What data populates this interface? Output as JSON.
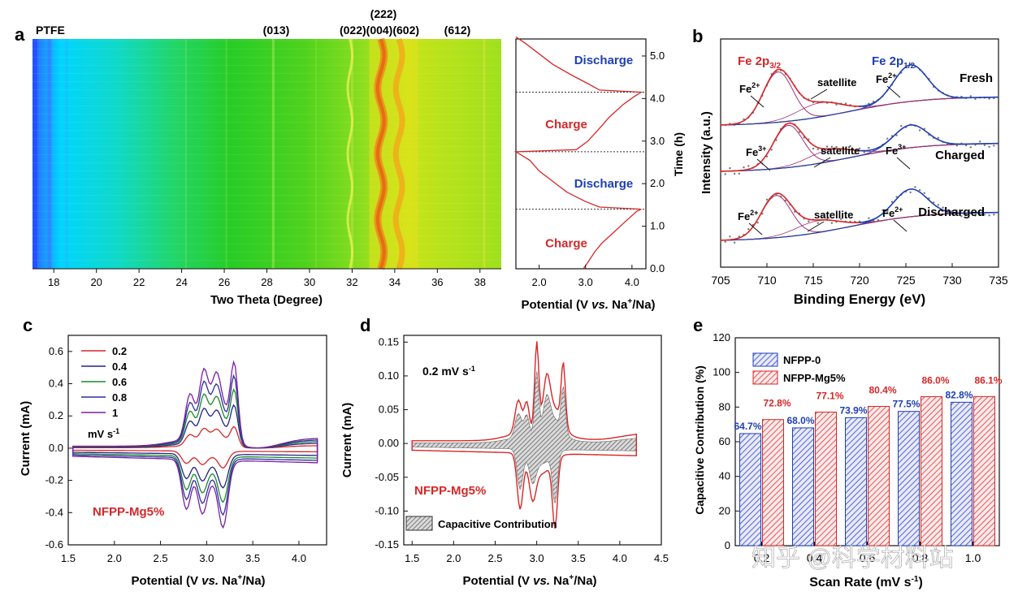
{
  "colors": {
    "red": "#d62728",
    "blue": "#1f3fb3",
    "green": "#1a8a2a",
    "purple": "#7a1fa2",
    "navy": "#23238e",
    "black": "#111111"
  },
  "watermark": "知乎 @科学材料站",
  "chart_data": [
    {
      "panel": "a",
      "type": "heatmap",
      "panel_label": "a",
      "title": "PTFE",
      "xlabel": "Two Theta (Degree)",
      "xlim": [
        17,
        39
      ],
      "xticks": [
        "18",
        "20",
        "22",
        "24",
        "26",
        "28",
        "30",
        "32",
        "34",
        "36",
        "38"
      ],
      "peak_labels": [
        {
          "label": "(013)",
          "x": 28.3
        },
        {
          "label": "(022)(004)(602)",
          "x": 33.5
        },
        {
          "label": "(222)",
          "x": 33.7
        },
        {
          "label": "(612)",
          "x": 36.4
        }
      ],
      "colorscale": [
        "#2a5cff",
        "#00d5ff",
        "#22d6a0",
        "#27cc27",
        "#7fdc1f",
        "#d6e51a",
        "#ffb000",
        "#f07020"
      ]
    },
    {
      "panel": "a-right",
      "type": "line",
      "xlabel_parts": [
        "Potential (V ",
        "vs.",
        " Na",
        "+",
        "/Na)"
      ],
      "ylabel": "Time (h)",
      "xlim": [
        1.5,
        4.3
      ],
      "ylim": [
        0,
        5.4
      ],
      "xticks": [
        "2.0",
        "3.0",
        "4.0"
      ],
      "yticks": [
        "0.0",
        "1.0",
        "2.0",
        "3.0",
        "4.0",
        "5.0"
      ],
      "segments": [
        "Charge",
        "Discharge",
        "Charge",
        "Discharge"
      ],
      "boundaries_h": [
        1.4,
        2.75,
        4.15
      ],
      "curve": {
        "potential": [
          2.95,
          3.05,
          3.2,
          3.35,
          3.6,
          3.9,
          4.1,
          4.2,
          3.3,
          3.0,
          2.6,
          2.3,
          2.0,
          1.8,
          1.5,
          2.8,
          3.05,
          3.3,
          3.5,
          3.8,
          4.05,
          4.2,
          3.3,
          3.05,
          2.7,
          2.3,
          2.0,
          1.7,
          1.5
        ],
        "time": [
          0.0,
          0.15,
          0.4,
          0.6,
          0.85,
          1.15,
          1.35,
          1.4,
          1.45,
          1.58,
          1.8,
          2.05,
          2.3,
          2.55,
          2.75,
          2.8,
          3.0,
          3.3,
          3.55,
          3.85,
          4.05,
          4.15,
          4.2,
          4.35,
          4.55,
          4.8,
          5.05,
          5.3,
          5.45
        ]
      }
    },
    {
      "panel": "b",
      "type": "line",
      "panel_label": "b",
      "xlabel": "Binding Energy (eV)",
      "ylabel": "Intensity (a.u.)",
      "xlim": [
        705,
        735
      ],
      "xticks": [
        "705",
        "710",
        "715",
        "720",
        "725",
        "730",
        "735"
      ],
      "headers": {
        "fe2p32_main": "Fe 2p",
        "fe2p32_sub": "3/2",
        "fe2p12_main": "Fe 2p",
        "fe2p12_sub": "1/2"
      },
      "spectra": [
        {
          "name": "Fresh",
          "annotations": [
            {
              "ion": "Fe",
              "charge": "2+",
              "x": 709
            },
            {
              "text": "satellite",
              "x": 716.5
            },
            {
              "ion": "Fe",
              "charge": "2+",
              "x": 723.5
            }
          ]
        },
        {
          "name": "Charged",
          "annotations": [
            {
              "ion": "Fe",
              "charge": "3+",
              "x": 709.5
            },
            {
              "text": "satellite",
              "x": 718
            },
            {
              "ion": "Fe",
              "charge": "3+",
              "x": 723.5
            }
          ]
        },
        {
          "name": "Discharged",
          "annotations": [
            {
              "ion": "Fe",
              "charge": "2+",
              "x": 709
            },
            {
              "text": "satellite",
              "x": 717.5
            },
            {
              "ion": "Fe",
              "charge": "2+",
              "x": 724.5
            }
          ]
        }
      ]
    },
    {
      "panel": "c",
      "type": "line",
      "panel_label": "c",
      "xlabel_parts": [
        "Potential (V ",
        "vs.",
        " Na",
        "+",
        "/Na)"
      ],
      "ylabel": "Current (mA)",
      "xlim": [
        1.5,
        4.3
      ],
      "ylim": [
        -0.6,
        0.7
      ],
      "xticks": [
        "1.5",
        "2.0",
        "2.5",
        "3.0",
        "3.5",
        "4.0"
      ],
      "yticks": [
        "-0.6",
        "-0.4",
        "-0.2",
        "0.0",
        "0.2",
        "0.4",
        "0.6"
      ],
      "legend_title": "mV s",
      "legend_title_sup": "-1",
      "sample_label": "NFPP-Mg5%",
      "series": [
        {
          "name": "0.2",
          "scale": 0.25
        },
        {
          "name": "0.4",
          "scale": 0.5
        },
        {
          "name": "0.6",
          "scale": 0.68
        },
        {
          "name": "0.8",
          "scale": 0.84
        },
        {
          "name": "1",
          "scale": 1.0
        }
      ]
    },
    {
      "panel": "d",
      "type": "area",
      "panel_label": "d",
      "xlabel_parts": [
        "Potential (V ",
        "vs.",
        " Na",
        "+",
        "/Na)"
      ],
      "ylabel": "Current (mA)",
      "xlim": [
        1.4,
        4.5
      ],
      "ylim": [
        -0.15,
        0.16
      ],
      "xticks": [
        "1.5",
        "2.0",
        "2.5",
        "3.0",
        "3.5",
        "4.0",
        "4.5"
      ],
      "yticks": [
        "-0.15",
        "-0.10",
        "-0.05",
        "0.00",
        "0.05",
        "0.10",
        "0.15"
      ],
      "rate_label": "0.2 mV s",
      "rate_sup": "-1",
      "sample_label": "NFPP-Mg5%",
      "legend": "Capacitive Contribution"
    },
    {
      "panel": "e",
      "type": "bar",
      "panel_label": "e",
      "xlabel": "Scan Rate (mV s",
      "xlabel_sup": "-1",
      "xlabel_end": ")",
      "ylabel": "Capacitive Contribution (%)",
      "ylim": [
        0,
        120
      ],
      "yticks": [
        "0",
        "20",
        "40",
        "60",
        "80",
        "100",
        "120"
      ],
      "categories": [
        "0.2",
        "0.4",
        "0.6",
        "0.8",
        "1.0"
      ],
      "series": [
        {
          "name": "NFPP-0",
          "values": [
            64.7,
            68.0,
            73.9,
            77.5,
            82.8
          ],
          "labels": [
            "64.7%",
            "68.0%",
            "73.9%",
            "77.5%",
            "82.8%"
          ]
        },
        {
          "name": "NFPP-Mg5%",
          "values": [
            72.8,
            77.1,
            80.4,
            86.0,
            86.1
          ],
          "labels": [
            "72.8%",
            "77.1%",
            "80.4%",
            "86.0%",
            "86.1%"
          ]
        }
      ]
    }
  ]
}
